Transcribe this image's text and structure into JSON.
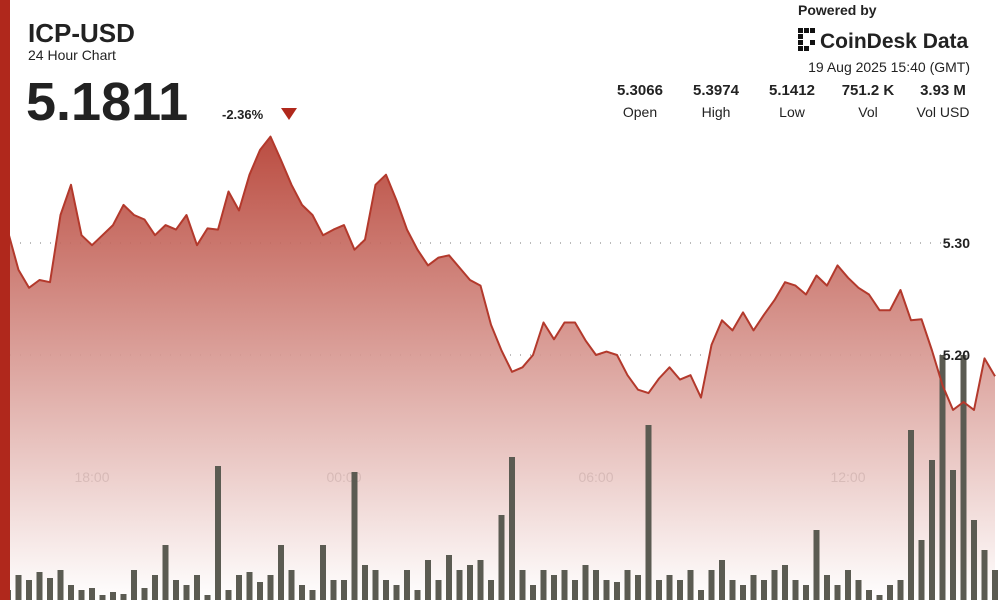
{
  "header": {
    "title": "ICP-USD",
    "subtitle": "24 Hour Chart",
    "price": "5.1811",
    "change": "-2.36%",
    "powered_by": "Powered by",
    "brand": "CoinDesk Data",
    "timestamp": "19 Aug 2025 15:40 (GMT)",
    "stats": [
      {
        "value": "5.3066",
        "label": "Open"
      },
      {
        "value": "5.3974",
        "label": "High"
      },
      {
        "value": "5.1412",
        "label": "Low"
      },
      {
        "value": "751.2 K",
        "label": "Vol"
      },
      {
        "value": "3.93 M",
        "label": "Vol USD"
      }
    ]
  },
  "chart_data": {
    "type": "line",
    "categories": [
      null,
      null,
      null,
      null,
      null,
      null,
      null,
      null,
      "18:00",
      null,
      null,
      null,
      null,
      null,
      null,
      null,
      null,
      null,
      null,
      null,
      null,
      null,
      null,
      null,
      null,
      null,
      null,
      null,
      null,
      null,
      null,
      null,
      "00:00",
      null,
      null,
      null,
      null,
      null,
      null,
      null,
      null,
      null,
      null,
      null,
      null,
      null,
      null,
      null,
      null,
      null,
      null,
      null,
      null,
      null,
      null,
      null,
      "06:00",
      null,
      null,
      null,
      null,
      null,
      null,
      null,
      null,
      null,
      null,
      null,
      null,
      null,
      null,
      null,
      null,
      null,
      null,
      null,
      null,
      null,
      null,
      null,
      "12:00",
      null,
      null,
      null,
      null,
      null,
      null,
      null,
      null,
      null,
      null,
      null,
      null,
      null,
      null
    ],
    "series": [
      {
        "name": "Price",
        "color": "#b3392c",
        "values": [
          5.31,
          5.276,
          5.26,
          5.267,
          5.265,
          5.325,
          5.352,
          5.307,
          5.298,
          5.307,
          5.316,
          5.334,
          5.325,
          5.321,
          5.307,
          5.316,
          5.312,
          5.325,
          5.298,
          5.313,
          5.312,
          5.346,
          5.329,
          5.361,
          5.383,
          5.395,
          5.374,
          5.352,
          5.334,
          5.325,
          5.307,
          5.312,
          5.316,
          5.294,
          5.303,
          5.352,
          5.361,
          5.338,
          5.312,
          5.294,
          5.28,
          5.287,
          5.289,
          5.278,
          5.267,
          5.262,
          5.227,
          5.204,
          5.185,
          5.189,
          5.2,
          5.229,
          5.214,
          5.229,
          5.229,
          5.213,
          5.2,
          5.203,
          5.2,
          5.182,
          5.169,
          5.166,
          5.179,
          5.189,
          5.178,
          5.182,
          5.162,
          5.209,
          5.231,
          5.222,
          5.238,
          5.222,
          5.236,
          5.249,
          5.265,
          5.262,
          5.254,
          5.271,
          5.262,
          5.28,
          5.269,
          5.26,
          5.254,
          5.24,
          5.24,
          5.258,
          5.231,
          5.232,
          5.204,
          5.173,
          5.151,
          5.158,
          5.151,
          5.197,
          5.1811
        ]
      },
      {
        "name": "Volume",
        "color": "#5b5b52",
        "axis": "y2",
        "values": [
          10,
          25,
          20,
          28,
          22,
          30,
          15,
          10,
          12,
          5,
          8,
          6,
          30,
          12,
          25,
          55,
          20,
          15,
          25,
          5,
          134,
          10,
          25,
          28,
          18,
          25,
          55,
          30,
          15,
          10,
          55,
          20,
          20,
          128,
          35,
          30,
          20,
          15,
          30,
          10,
          40,
          20,
          45,
          30,
          35,
          40,
          20,
          85,
          143,
          30,
          15,
          30,
          25,
          30,
          20,
          35,
          30,
          20,
          18,
          30,
          25,
          175,
          20,
          25,
          20,
          30,
          10,
          30,
          40,
          20,
          15,
          25,
          20,
          30,
          35,
          20,
          15,
          70,
          25,
          15,
          30,
          20,
          10,
          5,
          15,
          20,
          170,
          60,
          140,
          245,
          130,
          245,
          80,
          50,
          30
        ]
      }
    ],
    "ylim": [
      5.13,
      5.4
    ],
    "yticks": [
      {
        "value": 5.3,
        "label": "5.30"
      },
      {
        "value": 5.2,
        "label": "5.20"
      }
    ],
    "y2lim": [
      0,
      250
    ],
    "grid": true
  }
}
